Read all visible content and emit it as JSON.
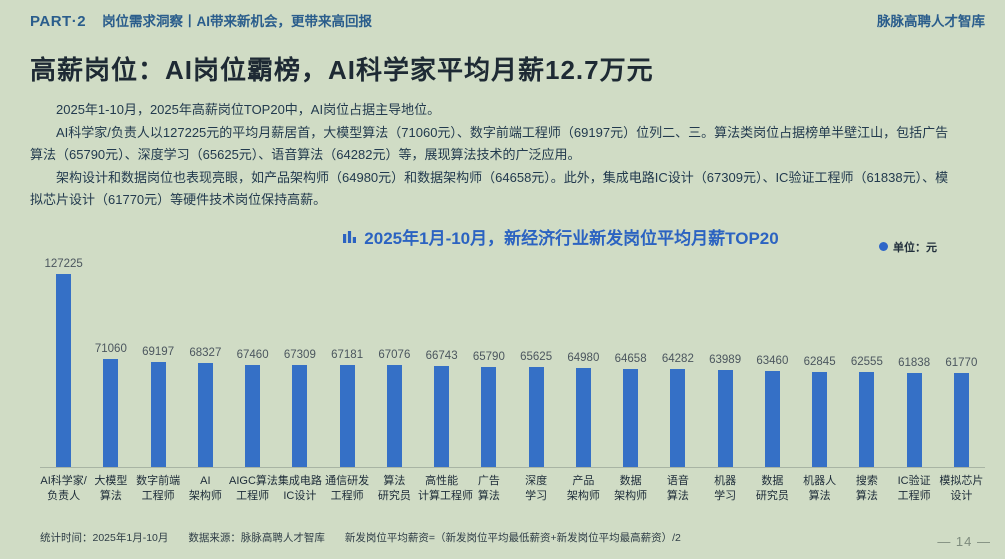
{
  "header": {
    "part_label": "PART·2",
    "section_title": "岗位需求洞察丨AI带来新机会，更带来高回报",
    "brand": "脉脉高聘人才智库"
  },
  "title": "高薪岗位：AI岗位霸榜，AI科学家平均月薪12.7万元",
  "paragraphs": {
    "p1": "2025年1-10月，2025年高薪岗位TOP20中，AI岗位占据主导地位。",
    "p2": "AI科学家/负责人以127225元的平均月薪居首，大模型算法（71060元）、数字前端工程师（69197元）位列二、三。算法类岗位占据榜单半壁江山，包括广告算法（65790元）、深度学习（65625元）、语音算法（64282元）等，展现算法技术的广泛应用。",
    "p3": "架构设计和数据岗位也表现亮眼，如产品架构师（64980元）和数据架构师（64658元）。此外，集成电路IC设计（67309元）、IC验证工程师（61838元）、模拟芯片设计（61770元）等硬件技术岗位保持高薪。"
  },
  "chart_data": {
    "type": "bar",
    "title": "2025年1月-10月，新经济行业新发岗位平均月薪TOP20",
    "unit_label": "单位：元",
    "legend_position": "top-right",
    "grid": false,
    "value_labels_shown": true,
    "ylim": [
      0,
      130000
    ],
    "bar_color": "#3570c6",
    "categories": [
      "AI科学家/\n负责人",
      "大模型\n算法",
      "数字前端\n工程师",
      "AI\n架构师",
      "AIGC算法\n工程师",
      "集成电路\nIC设计",
      "通信研发\n工程师",
      "算法\n研究员",
      "高性能\n计算工程师",
      "广告\n算法",
      "深度\n学习",
      "产品\n架构师",
      "数据\n架构师",
      "语音\n算法",
      "机器\n学习",
      "数据\n研究员",
      "机器人\n算法",
      "搜索\n算法",
      "IC验证\n工程师",
      "模拟芯片\n设计"
    ],
    "values": [
      127225,
      71060,
      69197,
      68327,
      67460,
      67309,
      67181,
      67076,
      66743,
      65790,
      65625,
      64980,
      64658,
      64282,
      63989,
      63460,
      62845,
      62555,
      61838,
      61770
    ]
  },
  "footer": {
    "stat_time": "统计时间：2025年1月-10月",
    "source": "数据来源：脉脉高聘人才智库",
    "formula": "新发岗位平均薪资=（新发岗位平均最低薪资+新发岗位平均最高薪资）/2",
    "page_number": "— 14 —"
  },
  "colors": {
    "background": "#d0dcc5",
    "bar": "#3570c6",
    "header_text": "#2a5d8c",
    "main_title_text": "#1e2a34",
    "chart_title_text": "#2b63c1",
    "legend_dot": "#2e66c8"
  }
}
